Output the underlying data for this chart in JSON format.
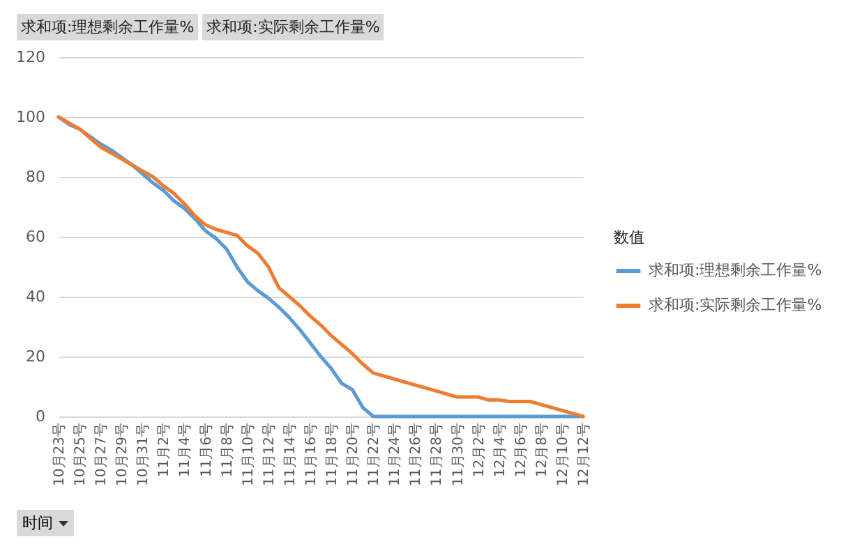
{
  "chart_data": {
    "type": "line",
    "legend_title": "数值",
    "xlabel": "时间",
    "annotations": [
      "求和项:理想剩余工作量%",
      "求和项:实际剩余工作量%"
    ],
    "categories": [
      "10月23号",
      null,
      "10月25号",
      null,
      "10月27号",
      null,
      "10月29号",
      null,
      "10月31号",
      null,
      "11月2号",
      null,
      "11月4号",
      null,
      "11月6号",
      null,
      "11月8号",
      null,
      "11月10号",
      null,
      "11月12号",
      null,
      "11月14号",
      null,
      "11月16号",
      null,
      "11月18号",
      null,
      "11月20号",
      null,
      "11月22号",
      null,
      "11月24号",
      null,
      "11月26号",
      null,
      "11月28号",
      null,
      "11月30号",
      null,
      "12月2号",
      null,
      "12月4号",
      null,
      "12月6号",
      null,
      "12月8号",
      null,
      "12月10号",
      null,
      "12月12号"
    ],
    "series": [
      {
        "name": "求和项:理想剩余工作量%",
        "color": "#5b9bd5",
        "values": [
          100,
          97.5,
          96,
          93.5,
          91,
          89,
          86.5,
          84,
          81,
          78,
          75.5,
          72,
          69.5,
          66,
          62,
          59.5,
          56,
          50,
          45,
          42,
          39.5,
          36.5,
          33,
          29,
          24.5,
          20,
          16,
          11,
          9,
          3,
          0,
          0,
          0,
          0,
          0,
          0,
          0,
          0,
          0,
          0,
          0,
          0,
          0,
          0,
          0,
          0,
          0,
          0,
          0,
          0,
          0
        ]
      },
      {
        "name": "求和项:实际剩余工作量%",
        "color": "#ed7d31",
        "values": [
          100,
          98,
          96,
          93,
          90,
          88,
          86,
          84,
          82,
          80,
          77,
          74.5,
          71,
          67,
          64,
          62.5,
          61.5,
          60.5,
          57,
          54.5,
          50,
          43,
          40,
          37,
          33.5,
          30.5,
          27,
          24,
          21,
          17.5,
          14.5,
          13.5,
          12.5,
          11.5,
          10.5,
          9.5,
          8.5,
          7.5,
          6.5,
          6.5,
          6.5,
          5.5,
          5.5,
          5,
          5,
          5,
          4,
          3,
          2,
          1,
          0
        ]
      }
    ],
    "ylim": [
      0,
      120
    ],
    "yticks": [
      0,
      20,
      40,
      60,
      80,
      100,
      120
    ],
    "grid": "y",
    "legend": "right",
    "marker": "none",
    "line_style": "solid"
  }
}
